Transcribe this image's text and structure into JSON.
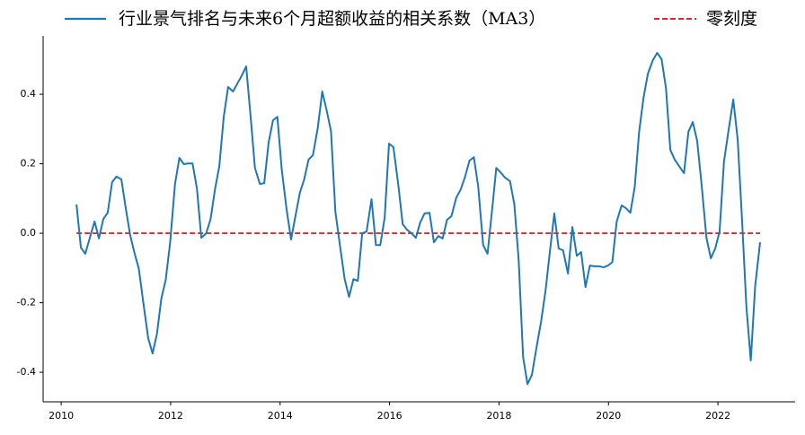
{
  "chart_data": {
    "type": "line",
    "x": [
      2010.28,
      2010.36,
      2010.44,
      2010.52,
      2010.61,
      2010.69,
      2010.77,
      2010.85,
      2010.93,
      2011.01,
      2011.1,
      2011.18,
      2011.26,
      2011.34,
      2011.42,
      2011.5,
      2011.59,
      2011.67,
      2011.75,
      2011.83,
      2011.91,
      2011.99,
      2012.08,
      2012.16,
      2012.24,
      2012.32,
      2012.4,
      2012.48,
      2012.56,
      2012.65,
      2012.73,
      2012.81,
      2012.89,
      2012.97,
      2013.05,
      2013.14,
      2013.22,
      2013.3,
      2013.38,
      2013.46,
      2013.54,
      2013.63,
      2013.71,
      2013.79,
      2013.87,
      2013.95,
      2014.03,
      2014.12,
      2014.2,
      2014.28,
      2014.36,
      2014.44,
      2014.52,
      2014.6,
      2014.69,
      2014.77,
      2014.85,
      2014.93,
      2015.01,
      2015.09,
      2015.18,
      2015.26,
      2015.34,
      2015.42,
      2015.5,
      2015.58,
      2015.67,
      2015.75,
      2015.83,
      2015.91,
      2015.99,
      2016.07,
      2016.16,
      2016.24,
      2016.32,
      2016.4,
      2016.48,
      2016.56,
      2016.64,
      2016.73,
      2016.81,
      2016.89,
      2016.97,
      2017.05,
      2017.13,
      2017.22,
      2017.3,
      2017.38,
      2017.46,
      2017.54,
      2017.62,
      2017.71,
      2017.79,
      2017.87,
      2017.95,
      2018.03,
      2018.11,
      2018.2,
      2018.28,
      2018.36,
      2018.44,
      2018.52,
      2018.6,
      2018.68,
      2018.77,
      2018.85,
      2018.93,
      2019.01,
      2019.09,
      2019.17,
      2019.26,
      2019.34,
      2019.42,
      2019.5,
      2019.58,
      2019.66,
      2019.75,
      2019.83,
      2019.91,
      2019.99,
      2020.07,
      2020.15,
      2020.24,
      2020.32,
      2020.4,
      2020.48,
      2020.56,
      2020.64,
      2020.72,
      2020.81,
      2020.89,
      2020.97,
      2021.05,
      2021.13,
      2021.21,
      2021.3,
      2021.38,
      2021.46,
      2021.54,
      2021.62,
      2021.7,
      2021.79,
      2021.87,
      2021.95,
      2022.03,
      2022.11,
      2022.19,
      2022.28,
      2022.36,
      2022.44,
      2022.52,
      2022.6,
      2022.68,
      2022.77
    ],
    "series": [
      {
        "name": "行业景气排名与未来6个月超额收益的相关系数（MA3）",
        "color": "#1f77b4",
        "values": [
          0.083,
          -0.041,
          -0.059,
          -0.015,
          0.034,
          -0.015,
          0.041,
          0.059,
          0.147,
          0.163,
          0.155,
          0.072,
          -0.005,
          -0.057,
          -0.103,
          -0.199,
          -0.302,
          -0.346,
          -0.289,
          -0.188,
          -0.134,
          -0.028,
          0.142,
          0.217,
          0.199,
          0.201,
          0.201,
          0.129,
          -0.013,
          0.0,
          0.041,
          0.126,
          0.194,
          0.335,
          0.421,
          0.408,
          0.431,
          0.454,
          0.48,
          0.338,
          0.188,
          0.142,
          0.144,
          0.261,
          0.325,
          0.335,
          0.183,
          0.067,
          -0.018,
          0.049,
          0.116,
          0.155,
          0.212,
          0.225,
          0.305,
          0.408,
          0.354,
          0.294,
          0.062,
          -0.031,
          -0.132,
          -0.183,
          -0.132,
          -0.137,
          0.0,
          0.005,
          0.098,
          -0.034,
          -0.034,
          0.044,
          0.258,
          0.248,
          0.139,
          0.026,
          0.01,
          0.0,
          -0.013,
          0.031,
          0.057,
          0.059,
          -0.026,
          -0.008,
          -0.015,
          0.039,
          0.049,
          0.103,
          0.126,
          0.163,
          0.209,
          0.219,
          0.134,
          -0.034,
          -0.059,
          0.062,
          0.188,
          0.175,
          0.16,
          0.15,
          0.083,
          -0.08,
          -0.356,
          -0.434,
          -0.408,
          -0.333,
          -0.253,
          -0.165,
          -0.052,
          0.057,
          -0.044,
          -0.049,
          -0.116,
          0.018,
          -0.065,
          -0.054,
          -0.155,
          -0.093,
          -0.095,
          -0.095,
          -0.098,
          -0.093,
          -0.083,
          0.034,
          0.08,
          0.072,
          0.059,
          0.134,
          0.292,
          0.39,
          0.459,
          0.498,
          0.519,
          0.501,
          0.418,
          0.24,
          0.212,
          0.191,
          0.173,
          0.292,
          0.32,
          0.266,
          0.142,
          -0.013,
          -0.072,
          -0.044,
          0.005,
          0.206,
          0.292,
          0.385,
          0.271,
          0.039,
          -0.212,
          -0.366,
          -0.152,
          -0.026
        ]
      }
    ],
    "reference_line": {
      "name": "零刻度",
      "value": 0,
      "color": "#e8262a",
      "dashed": true
    },
    "xlim": [
      2009.67,
      2023.41
    ],
    "xticks": [
      2010,
      2012,
      2014,
      2016,
      2018,
      2020,
      2022
    ],
    "ylim": [
      -0.485,
      0.568
    ],
    "yticks": [
      -0.4,
      -0.2,
      {
        "value": 0,
        "label": "0.0"
      },
      0.2,
      0.4
    ],
    "grid": false,
    "legend": "top"
  }
}
